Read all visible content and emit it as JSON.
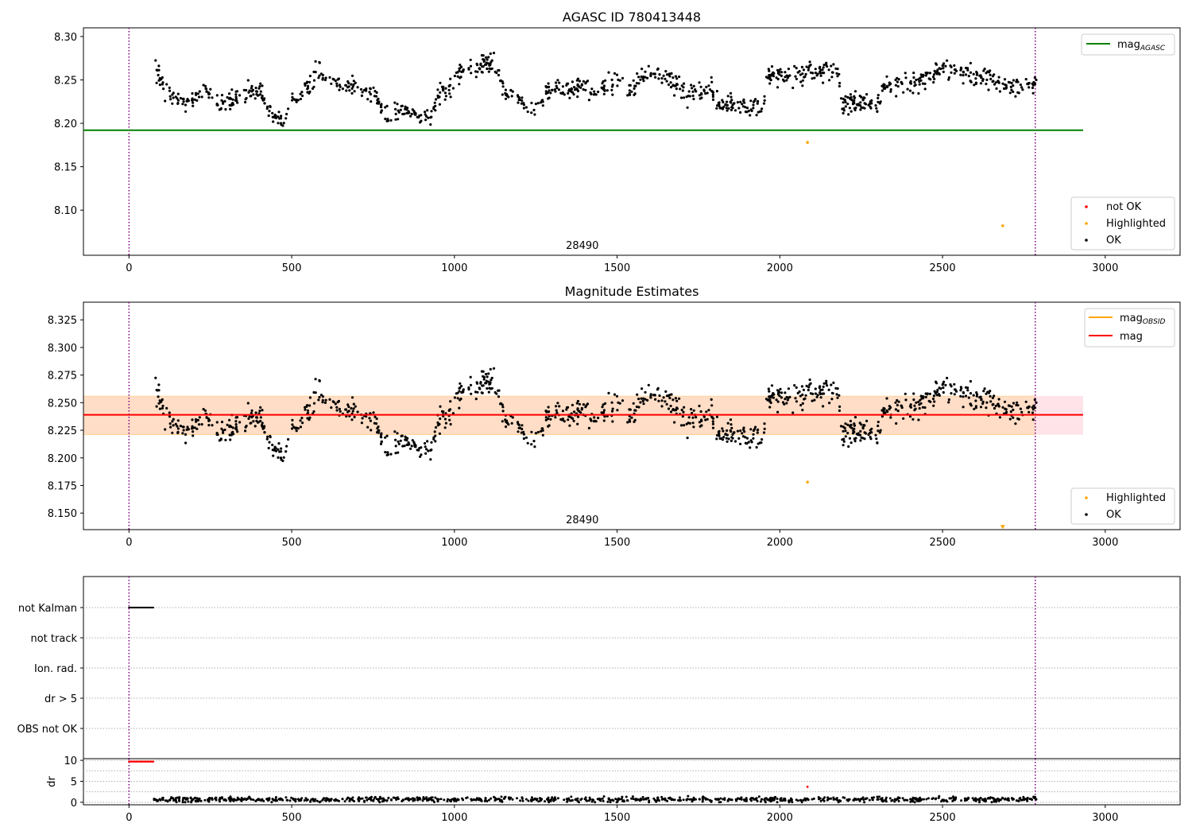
{
  "chart_data": [
    {
      "type": "scatter",
      "title": "AGASC ID 780413448",
      "xlim": [
        -140,
        3230
      ],
      "ylim": [
        8.048,
        8.31
      ],
      "x_ticks": [
        0,
        500,
        1000,
        1500,
        2000,
        2500,
        3000
      ],
      "y_ticks": [
        8.1,
        8.15,
        8.2,
        8.25,
        8.3
      ],
      "y_tick_labels": [
        "8.10",
        "8.15",
        "8.20",
        "8.25",
        "8.30"
      ],
      "obsid_label": {
        "text": "28490",
        "x": 1393
      },
      "obs_boundaries": [
        0,
        2785
      ],
      "hlines": [
        {
          "name": "mag_AGASC",
          "value": 8.192,
          "x_range": [
            -140,
            2932
          ],
          "color": "#008000"
        }
      ],
      "line_legend": {
        "placement": "top-right",
        "entries": [
          {
            "label": "mag",
            "sub": "AGASC",
            "color": "#008000"
          }
        ]
      },
      "point_legend": {
        "placement": "bottom-right",
        "entries": [
          {
            "label": "not OK",
            "color": "#ff0000"
          },
          {
            "label": "Highlighted",
            "color": "#ffa500"
          },
          {
            "label": "OK",
            "color": "#000000"
          }
        ]
      },
      "series": [
        {
          "name": "OK",
          "color": "#000000",
          "x_range": [
            80,
            2790
          ],
          "profile_x": [
            80,
            100,
            130,
            160,
            190,
            220,
            250,
            280,
            310,
            340,
            370,
            400,
            420,
            450,
            470,
            480,
            500,
            530,
            560,
            580,
            600,
            640,
            680,
            720,
            760,
            780,
            800,
            850,
            900,
            930,
            950,
            980,
            1000,
            1030,
            1060,
            1090,
            1120,
            1140,
            1160,
            1200,
            1220,
            1240,
            1260,
            1280,
            1300,
            1350,
            1400,
            1450,
            1480,
            1500,
            1540,
            1580,
            1620,
            1660,
            1700,
            1730,
            1760,
            1790,
            1800,
            1850,
            1900,
            1950,
            1960,
            2000,
            2050,
            2100,
            2150,
            2180,
            2190,
            2230,
            2270,
            2300,
            2320,
            2360,
            2400,
            2450,
            2500,
            2550,
            2600,
            2650,
            2700,
            2750,
            2790
          ],
          "profile_y": [
            8.258,
            8.252,
            8.232,
            8.224,
            8.223,
            8.238,
            8.231,
            8.226,
            8.226,
            8.23,
            8.233,
            8.238,
            8.222,
            8.205,
            8.204,
            8.205,
            8.225,
            8.232,
            8.246,
            8.258,
            8.254,
            8.247,
            8.241,
            8.236,
            8.231,
            8.212,
            8.21,
            8.214,
            8.208,
            8.205,
            8.236,
            8.231,
            8.255,
            8.262,
            8.262,
            8.266,
            8.27,
            8.25,
            8.232,
            8.23,
            8.214,
            8.211,
            8.218,
            8.236,
            8.24,
            8.24,
            8.242,
            8.236,
            8.247,
            8.247,
            8.237,
            8.256,
            8.255,
            8.253,
            8.24,
            8.229,
            8.237,
            8.245,
            8.224,
            8.224,
            8.219,
            8.22,
            8.253,
            8.258,
            8.253,
            8.26,
            8.26,
            8.256,
            8.223,
            8.224,
            8.224,
            8.222,
            8.242,
            8.244,
            8.242,
            8.255,
            8.264,
            8.26,
            8.251,
            8.253,
            8.243,
            8.244,
            8.247
          ],
          "noise": 0.0055,
          "count": 1100
        },
        {
          "name": "Highlighted",
          "color": "#ffa500",
          "x": [
            2085,
            2685
          ],
          "y": [
            8.178,
            8.082
          ]
        }
      ]
    },
    {
      "type": "scatter",
      "title": "Magnitude Estimates",
      "xlim": [
        -140,
        3230
      ],
      "ylim": [
        8.135,
        8.341
      ],
      "x_ticks": [
        0,
        500,
        1000,
        1500,
        2000,
        2500,
        3000
      ],
      "y_ticks": [
        8.15,
        8.175,
        8.2,
        8.225,
        8.25,
        8.275,
        8.3,
        8.325
      ],
      "y_tick_labels": [
        "8.150",
        "8.175",
        "8.200",
        "8.225",
        "8.250",
        "8.275",
        "8.300",
        "8.325"
      ],
      "obsid_label": {
        "text": "28490",
        "x": 1393
      },
      "obs_boundaries": [
        0,
        2785
      ],
      "hlines": [
        {
          "name": "mag",
          "value": 8.239,
          "x_range": [
            -140,
            2932
          ],
          "color": "#ff0000"
        }
      ],
      "bands": [
        {
          "name": "mag band",
          "y_range": [
            8.221,
            8.256
          ],
          "x_range": [
            -140,
            2932
          ],
          "color": "#ffc0cb"
        },
        {
          "name": "mag_OBSID band",
          "y_range": [
            8.221,
            8.256
          ],
          "x_range": [
            -140,
            2785
          ],
          "color": "#ffdbc2"
        }
      ],
      "line_legend": {
        "placement": "top-right",
        "entries": [
          {
            "label": "mag",
            "sub": "OBSID",
            "color": "#ffa500"
          },
          {
            "label": "mag",
            "sub": "",
            "color": "#ff0000"
          }
        ]
      },
      "point_legend": {
        "placement": "bottom-right",
        "entries": [
          {
            "label": "Highlighted",
            "color": "#ffa500"
          },
          {
            "label": "OK",
            "color": "#000000"
          }
        ]
      },
      "series": [
        {
          "name": "OK",
          "same_as": "chart0.OK"
        },
        {
          "name": "Highlighted",
          "color": "#ffa500",
          "x": [
            2085
          ],
          "y": [
            8.178
          ]
        },
        {
          "name": "Highlighted (off-scale)",
          "color": "#ffa500",
          "marker": "triangle-down",
          "x": [
            2685
          ],
          "y": [
            8.137
          ]
        }
      ]
    },
    {
      "type": "scatter",
      "title": "",
      "xlim": [
        -140,
        3230
      ],
      "flag_rows": [
        "not Kalman",
        "not track",
        "Ion. rad.",
        "dr > 5",
        "OBS not OK"
      ],
      "flag_points": [
        {
          "row": "not Kalman",
          "x_range": [
            0,
            75
          ],
          "color": "#000000"
        }
      ],
      "obs_boundaries": [
        0,
        2785
      ]
    },
    {
      "type": "scatter",
      "title": "",
      "ylabel": "dr",
      "xlim": [
        -140,
        3230
      ],
      "ylim": [
        -0.6,
        10.4
      ],
      "x_ticks": [
        0,
        500,
        1000,
        1500,
        2000,
        2500,
        3000
      ],
      "y_ticks": [
        0,
        5,
        10
      ],
      "y_tick_labels": [
        "0",
        "5",
        "10"
      ],
      "obs_boundaries": [
        0,
        2785
      ],
      "series": [
        {
          "name": "dr (capped)",
          "color": "#ff0000",
          "x_range": [
            0,
            75
          ],
          "y": 9.7
        },
        {
          "name": "dr outlier",
          "color": "#ff0000",
          "x": [
            2085
          ],
          "y": [
            3.7
          ]
        },
        {
          "name": "dr",
          "color": "#000000",
          "x_range": [
            75,
            2790
          ],
          "mean": 0.65,
          "noise": 0.3,
          "count": 900
        }
      ]
    }
  ]
}
